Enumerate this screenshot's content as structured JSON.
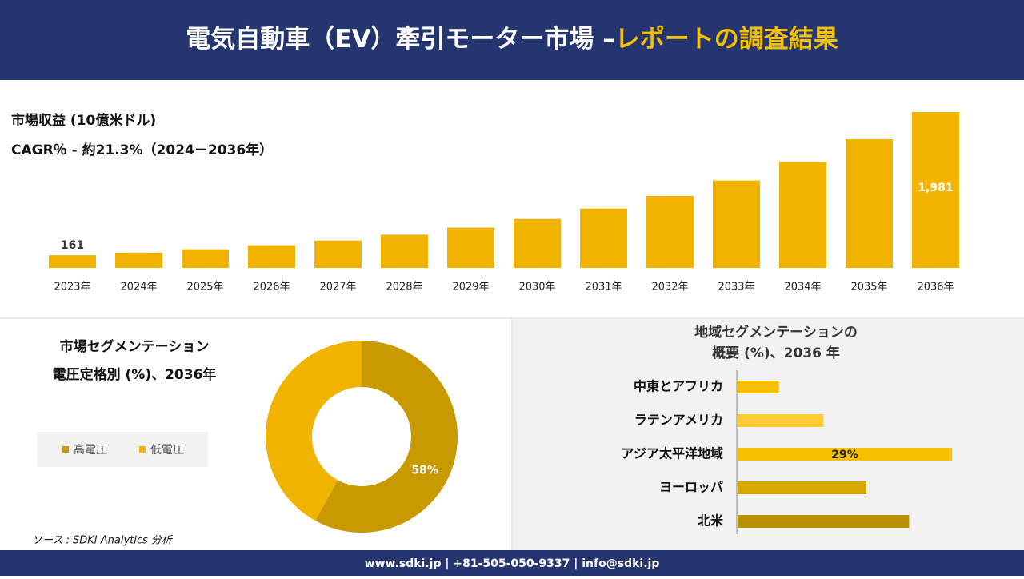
{
  "header": {
    "title_main": "電気自動車（EV）牽引モーター市場 –",
    "title_accent": "レポートの調査結果"
  },
  "chart_data": [
    {
      "type": "bar",
      "title": "市場収益 (10億米ドル)",
      "subtitle": "CAGR％ - 約21.3%（2024－2036年）",
      "categories": [
        "2023年",
        "2024年",
        "2025年",
        "2026年",
        "2027年",
        "2028年",
        "2029年",
        "2030年",
        "2031年",
        "2032年",
        "2033年",
        "2034年",
        "2035年",
        "2036年"
      ],
      "values": [
        161,
        195,
        237,
        288,
        349,
        423,
        513,
        623,
        755,
        916,
        1111,
        1348,
        1635,
        1981
      ],
      "value_labels": [
        "161",
        null,
        null,
        null,
        null,
        null,
        null,
        null,
        null,
        null,
        null,
        null,
        null,
        "1,981"
      ],
      "color": "#f0b400"
    },
    {
      "type": "donut",
      "title": "市場セグメンテーション",
      "subtitle": "電圧定格別 (%)、2036年",
      "categories": [
        "高電圧",
        "低電圧"
      ],
      "values": [
        58,
        42
      ],
      "value_labels": [
        "58%",
        null
      ],
      "colors": [
        "#c89a00",
        "#f0b400"
      ]
    },
    {
      "type": "hbar",
      "title": "地域セグメンテーションの",
      "subtitle": "概要 (%)、2036 年",
      "categories": [
        "中東とアフリカ",
        "ラテンアメリカ",
        "アジア太平洋地域",
        "ヨーロッパ",
        "北米"
      ],
      "values": [
        5.6,
        11.6,
        29,
        17.4,
        23.2
      ],
      "value_labels": [
        null,
        null,
        "29%",
        null,
        null
      ],
      "colors": [
        "#f5c000",
        "#ffcc33",
        "#f5c000",
        "#d4a800",
        "#b89000"
      ]
    }
  ],
  "source": "ソース : SDKI Analytics 分析",
  "footer": "www.sdki.jp | +81-505-050-9337 | info@sdki.jp"
}
